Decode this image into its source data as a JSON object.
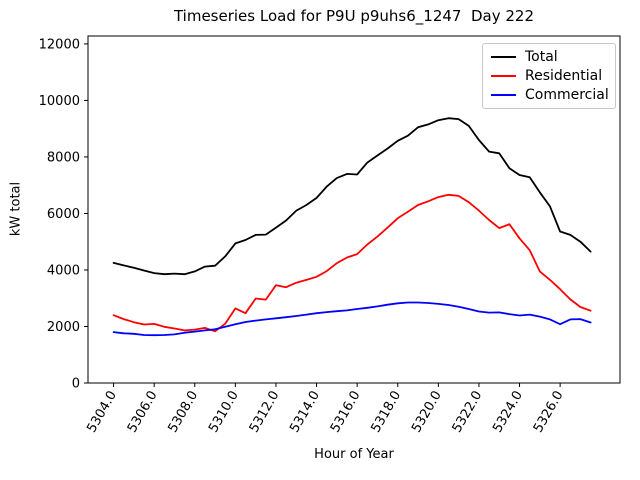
{
  "figure": {
    "background": "#ffffff",
    "frame_color": "#000000"
  },
  "chart_data": {
    "type": "line",
    "title": "Timeseries Load for P9U p9uhs6_1247  Day 222",
    "xlabel": "Hour of Year",
    "ylabel": "kW total",
    "xlim": [
      5302.74,
      5328.95
    ],
    "ylim": [
      0,
      12280
    ],
    "grid": false,
    "legend_position": "upper right",
    "xticks": [
      5304,
      5306,
      5308,
      5310,
      5312,
      5314,
      5316,
      5318,
      5320,
      5322,
      5324,
      5326
    ],
    "xtick_labels": [
      "5304.0",
      "5306.0",
      "5308.0",
      "5310.0",
      "5312.0",
      "5314.0",
      "5316.0",
      "5318.0",
      "5320.0",
      "5322.0",
      "5324.0",
      "5326.0"
    ],
    "xtick_rotation_deg": 60,
    "yticks": [
      0,
      2000,
      4000,
      6000,
      8000,
      10000,
      12000
    ],
    "ytick_labels": [
      "0",
      "2000",
      "4000",
      "6000",
      "8000",
      "10000",
      "12000"
    ],
    "x": [
      5304.0,
      5304.5,
      5305.0,
      5305.5,
      5306.0,
      5306.5,
      5307.0,
      5307.5,
      5308.0,
      5308.5,
      5309.0,
      5309.5,
      5310.0,
      5310.5,
      5311.0,
      5311.5,
      5312.0,
      5312.5,
      5313.0,
      5313.5,
      5314.0,
      5314.5,
      5315.0,
      5315.5,
      5316.0,
      5316.5,
      5317.0,
      5317.5,
      5318.0,
      5318.5,
      5319.0,
      5319.5,
      5320.0,
      5320.5,
      5321.0,
      5321.5,
      5322.0,
      5322.5,
      5323.0,
      5323.5,
      5324.0,
      5324.5,
      5325.0,
      5325.5,
      5326.0,
      5326.5,
      5327.0,
      5327.5
    ],
    "series": [
      {
        "name": "Total",
        "color": "#000000",
        "values": [
          4250,
          4160,
          4080,
          3980,
          3890,
          3850,
          3870,
          3850,
          3950,
          4120,
          4150,
          4480,
          4940,
          5060,
          5240,
          5250,
          5500,
          5750,
          6100,
          6300,
          6550,
          6950,
          7250,
          7400,
          7380,
          7800,
          8050,
          8300,
          8570,
          8750,
          9050,
          9150,
          9300,
          9370,
          9340,
          9100,
          8600,
          8190,
          8130,
          7600,
          7360,
          7280,
          6750,
          6250,
          5360,
          5240,
          5000,
          4650
        ]
      },
      {
        "name": "Residential",
        "color": "#ff0000",
        "values": [
          2400,
          2260,
          2150,
          2070,
          2090,
          1990,
          1930,
          1860,
          1890,
          1950,
          1830,
          2100,
          2640,
          2470,
          2990,
          2950,
          3460,
          3390,
          3550,
          3650,
          3760,
          3960,
          4240,
          4440,
          4560,
          4900,
          5180,
          5500,
          5830,
          6060,
          6300,
          6430,
          6580,
          6660,
          6620,
          6400,
          6100,
          5770,
          5480,
          5620,
          5120,
          4700,
          3950,
          3650,
          3320,
          2960,
          2690,
          2560
        ]
      },
      {
        "name": "Commercial",
        "color": "#0000ff",
        "values": [
          1800,
          1760,
          1740,
          1700,
          1690,
          1700,
          1720,
          1780,
          1820,
          1860,
          1900,
          1990,
          2080,
          2160,
          2210,
          2250,
          2290,
          2330,
          2370,
          2420,
          2470,
          2510,
          2540,
          2570,
          2620,
          2660,
          2710,
          2770,
          2820,
          2850,
          2850,
          2830,
          2800,
          2760,
          2700,
          2620,
          2530,
          2490,
          2500,
          2440,
          2390,
          2420,
          2350,
          2250,
          2080,
          2250,
          2260,
          2140
        ]
      }
    ]
  }
}
